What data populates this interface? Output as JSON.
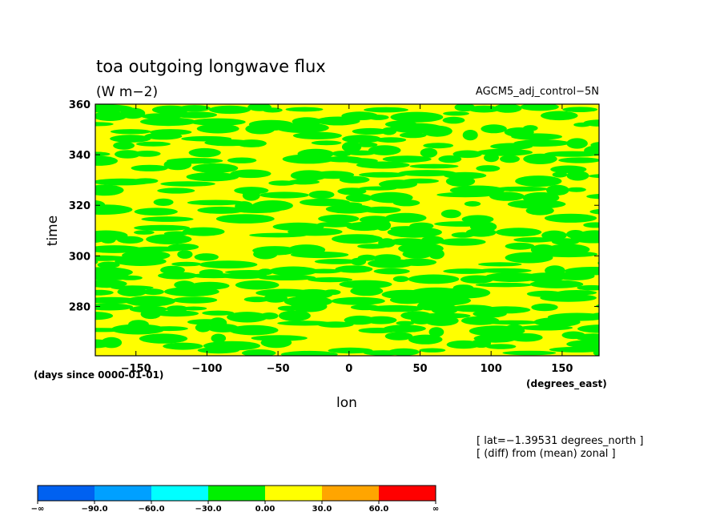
{
  "chart_data": {
    "type": "heatmap",
    "title": "toa outgoing longwave flux",
    "units": "(W m−2)",
    "experiment": "AGCM5_adj_control−5N",
    "xlabel": "lon",
    "ylabel": "time",
    "x_units": "(degrees_east)",
    "y_units": "(days since 0000-01-01)",
    "xlim": [
      -178.6,
      176
    ],
    "ylim": [
      260.5,
      360
    ],
    "x_ticks": [
      -150,
      -100,
      -50,
      0,
      50,
      100,
      150
    ],
    "x_tick_labels": [
      "−150",
      "−100",
      "−50",
      "0",
      "50",
      "100",
      "150"
    ],
    "y_ticks": [
      280,
      300,
      320,
      340,
      360
    ],
    "y_tick_labels": [
      "280",
      "300",
      "320",
      "340",
      "360"
    ],
    "info_lines": [
      "[ lat=−1.39531 degrees_north ]",
      "[ (diff) from (mean) zonal ]"
    ],
    "dominant_levels": [
      "-30.0 to 0.00 (green)",
      "0.00 to 30.0 (yellow)"
    ],
    "colorbar": {
      "colors": [
        "#0061f0",
        "#00a0ff",
        "#00ffff",
        "#00f000",
        "#ffff00",
        "#ffa500",
        "#ff0000"
      ],
      "labels": [
        "−∞",
        "−90.0",
        "−60.0",
        "−30.0",
        "0.00",
        "30.0",
        "60.0",
        "∞"
      ],
      "bounds": [
        -90,
        -60,
        -30,
        0,
        30,
        60
      ]
    }
  }
}
